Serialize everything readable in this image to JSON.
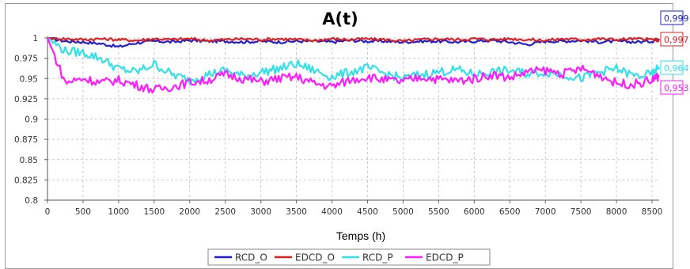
{
  "chart_data": {
    "type": "line",
    "title": "A(t)",
    "xlabel": "Temps (h)",
    "ylabel": "",
    "xlim": [
      0,
      8600
    ],
    "ylim": [
      0.8,
      1.0
    ],
    "grid": true,
    "legend_position": "bottom-center",
    "x_ticks": [
      "0",
      "500",
      "1000",
      "1500",
      "2000",
      "2500",
      "3000",
      "3500",
      "4000",
      "4500",
      "5000",
      "5500",
      "6000",
      "6500",
      "7000",
      "7500",
      "8000",
      "8500"
    ],
    "y_ticks": [
      "1",
      "0.975",
      "0.95",
      "0.925",
      "0.9",
      "0.875",
      "0.85",
      "0.825",
      "0.8"
    ],
    "x": [
      0,
      250,
      500,
      750,
      1000,
      1250,
      1500,
      1750,
      2000,
      2250,
      2500,
      2750,
      3000,
      3250,
      3500,
      3750,
      4000,
      4250,
      4500,
      4750,
      5000,
      5250,
      5500,
      5750,
      6000,
      6250,
      6500,
      6750,
      7000,
      7250,
      7500,
      7750,
      8000,
      8250,
      8500,
      8600
    ],
    "series": [
      {
        "name": "RCD_O",
        "color": "#1f1fd0",
        "end_label": "0,999",
        "values": [
          1.0,
          0.996,
          0.995,
          0.993,
          0.989,
          0.994,
          0.996,
          0.995,
          0.997,
          0.996,
          0.996,
          0.995,
          0.996,
          0.995,
          0.996,
          0.996,
          0.995,
          0.997,
          0.996,
          0.996,
          0.995,
          0.996,
          0.996,
          0.995,
          0.996,
          0.997,
          0.995,
          0.992,
          0.996,
          0.996,
          0.997,
          0.995,
          0.996,
          0.995,
          0.996,
          0.999
        ]
      },
      {
        "name": "EDCD_O",
        "color": "#e02020",
        "end_label": "0,997",
        "values": [
          1.0,
          0.999,
          0.998,
          0.999,
          0.998,
          0.997,
          0.999,
          0.998,
          0.999,
          0.997,
          0.998,
          0.999,
          0.998,
          0.999,
          0.998,
          0.997,
          0.999,
          0.998,
          0.999,
          0.998,
          0.996,
          0.998,
          0.999,
          0.998,
          0.999,
          0.998,
          0.999,
          0.998,
          0.997,
          0.999,
          0.998,
          0.999,
          0.998,
          0.999,
          0.998,
          0.997
        ]
      },
      {
        "name": "RCD_P",
        "color": "#33e0e8",
        "end_label": "0,964",
        "values": [
          1.0,
          0.984,
          0.982,
          0.975,
          0.962,
          0.958,
          0.968,
          0.955,
          0.948,
          0.955,
          0.96,
          0.953,
          0.958,
          0.962,
          0.968,
          0.96,
          0.952,
          0.958,
          0.963,
          0.956,
          0.95,
          0.955,
          0.958,
          0.961,
          0.955,
          0.958,
          0.96,
          0.956,
          0.958,
          0.955,
          0.95,
          0.958,
          0.962,
          0.953,
          0.955,
          0.964
        ]
      },
      {
        "name": "EDCD_P",
        "color": "#ff1aff",
        "end_label": "0,953",
        "values": [
          1.0,
          0.945,
          0.95,
          0.945,
          0.948,
          0.942,
          0.936,
          0.94,
          0.945,
          0.948,
          0.955,
          0.95,
          0.946,
          0.95,
          0.952,
          0.944,
          0.94,
          0.948,
          0.952,
          0.948,
          0.946,
          0.952,
          0.949,
          0.947,
          0.95,
          0.955,
          0.951,
          0.958,
          0.96,
          0.956,
          0.962,
          0.955,
          0.944,
          0.943,
          0.948,
          0.953
        ]
      }
    ]
  }
}
